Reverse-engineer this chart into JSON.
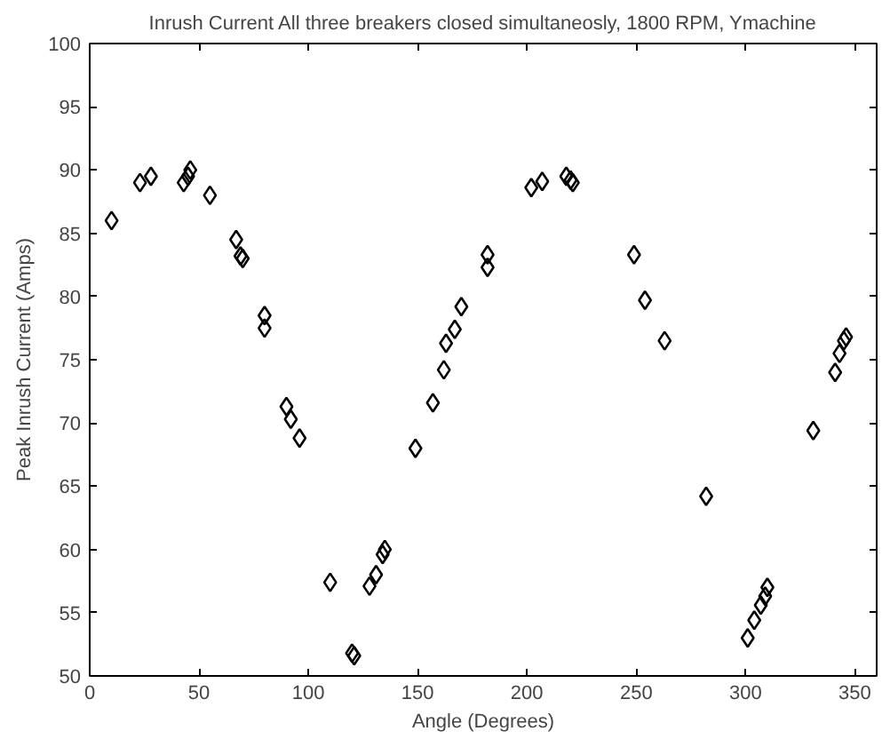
{
  "chart_data": {
    "type": "scatter",
    "title": "Inrush Current All three breakers closed simultaneosly, 1800 RPM, Ymachine",
    "xlabel": "Angle (Degrees)",
    "ylabel": "Peak Inrush Current (Amps)",
    "x": [
      10,
      23,
      28,
      43,
      45,
      46,
      55,
      67,
      69,
      70,
      80,
      80,
      90,
      92,
      96,
      110,
      120,
      121,
      128,
      131,
      134,
      135,
      149,
      157,
      162,
      163,
      167,
      170,
      182,
      182,
      202,
      207,
      218,
      220,
      221,
      249,
      254,
      263,
      282,
      301,
      304,
      307,
      309,
      310,
      331,
      341,
      343,
      345,
      346
    ],
    "series": [
      {
        "color": "#000000",
        "values": [
          86,
          89,
          89.5,
          89,
          89.5,
          90,
          88,
          84.5,
          83.2,
          83,
          78.5,
          77.5,
          71.3,
          70.3,
          68.8,
          57.4,
          51.8,
          51.6,
          57.1,
          58,
          59.6,
          60,
          68,
          71.6,
          74.2,
          76.3,
          77.4,
          79.2,
          83.3,
          82.3,
          88.6,
          89.1,
          89.5,
          89.2,
          89,
          83.3,
          79.7,
          76.5,
          64.2,
          53,
          54.4,
          55.6,
          56.3,
          57,
          69.4,
          74,
          75.5,
          76.5,
          76.8
        ]
      }
    ],
    "xlim": [
      0,
      360
    ],
    "ylim": [
      50,
      100
    ],
    "xticks": [
      0,
      50,
      100,
      150,
      200,
      250,
      300,
      350
    ],
    "yticks": [
      50,
      55,
      60,
      65,
      70,
      75,
      80,
      85,
      90,
      95,
      100
    ],
    "marker": "diamond",
    "grid": false
  }
}
